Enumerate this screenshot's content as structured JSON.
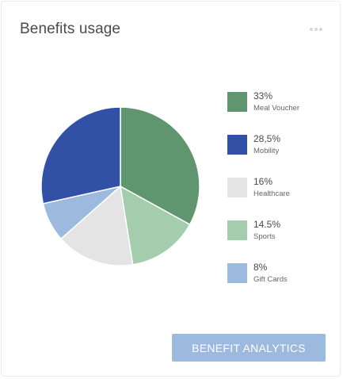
{
  "card": {
    "title": "Benefits usage",
    "menu_icon": "more-horizontal-icon"
  },
  "chart_data": {
    "type": "pie",
    "title": "",
    "slices": [
      {
        "label": "Meal Voucher",
        "display": "33%",
        "value": 33,
        "color": "#5f9670"
      },
      {
        "label": "Gift Cards",
        "display": "8%",
        "value": 8,
        "color": "#9cb9de"
      },
      {
        "label": "Healthcare",
        "display": "16%",
        "value": 16,
        "color": "#e4e4e4"
      },
      {
        "label": "Sports",
        "display": "14.5%",
        "value": 14.5,
        "color": "#a3cdad"
      },
      {
        "label": "Mobility",
        "display": "28,5%",
        "value": 28.5,
        "color": "#3150a6"
      }
    ],
    "pie_order": [
      "Meal Voucher",
      "Sports",
      "Healthcare",
      "Gift Cards",
      "Mobility"
    ]
  },
  "legend": {
    "items": [
      {
        "value": "33%",
        "label": "Meal Voucher",
        "color": "#5f9670"
      },
      {
        "value": "28,5%",
        "label": "Mobility",
        "color": "#3150a6"
      },
      {
        "value": "16%",
        "label": "Healthcare",
        "color": "#e4e4e4"
      },
      {
        "value": "14.5%",
        "label": "Sports",
        "color": "#a3cdad"
      },
      {
        "value": "8%",
        "label": "Gift Cards",
        "color": "#9cb9de"
      }
    ]
  },
  "actions": {
    "analytics_label": "BENEFIT ANALYTICS",
    "analytics_color": "#9cb9de"
  }
}
